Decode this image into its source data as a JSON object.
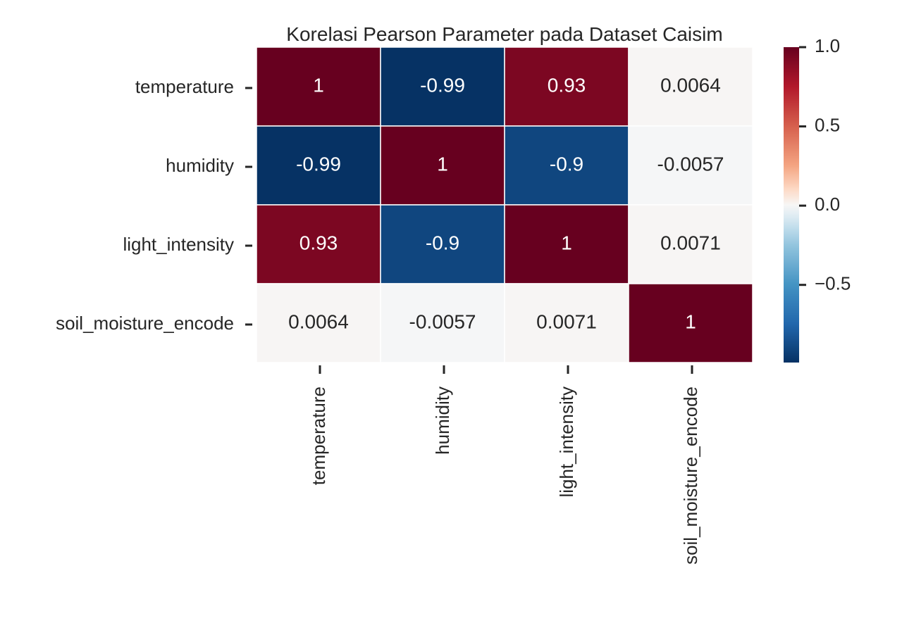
{
  "chart_data": {
    "type": "heatmap",
    "title": "Korelasi Pearson Parameter pada Dataset Caisim",
    "xlabel": "",
    "ylabel": "",
    "row_labels": [
      "temperature",
      "humidity",
      "light_intensity",
      "soil_moisture_encode"
    ],
    "col_labels": [
      "temperature",
      "humidity",
      "light_intensity",
      "soil_moisture_encode"
    ],
    "values": [
      [
        1,
        -0.99,
        0.93,
        0.0064
      ],
      [
        -0.99,
        1,
        -0.9,
        -0.0057
      ],
      [
        0.93,
        -0.9,
        1,
        0.0071
      ],
      [
        0.0064,
        -0.0057,
        0.0071,
        1
      ]
    ],
    "annotations": [
      [
        "1",
        "-0.99",
        "0.93",
        "0.0064"
      ],
      [
        "-0.99",
        "1",
        "-0.9",
        "-0.0057"
      ],
      [
        "0.93",
        "-0.9",
        "1",
        "0.0071"
      ],
      [
        "0.0064",
        "-0.0057",
        "0.0071",
        "1"
      ]
    ],
    "colorbar": {
      "range": [
        -0.99,
        1.0
      ],
      "ticks": [
        1.0,
        0.5,
        0.0,
        -0.5
      ],
      "tick_labels": [
        "1.0",
        "0.5",
        "0.0",
        "−0.5"
      ],
      "colormap": "RdBu_r"
    },
    "grid": false,
    "legend": "colorbar-right",
    "colors": {
      "text_dark": "#262626",
      "text_light": "#ffffff",
      "cell_border": "#ffffff"
    }
  }
}
